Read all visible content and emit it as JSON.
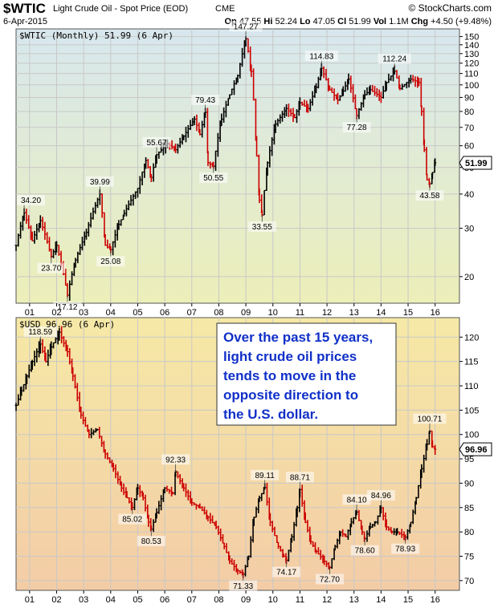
{
  "header": {
    "symbol": "$WTIC",
    "description": "Light Crude Oil - Spot Price (EOD)",
    "exchange": "CME",
    "brand": "© StockCharts.com",
    "date": "6-Apr-2015",
    "stats": [
      {
        "label": "Op",
        "value": "47.55"
      },
      {
        "label": "Hi",
        "value": "52.24"
      },
      {
        "label": "Lo",
        "value": "47.05"
      },
      {
        "label": "Cl",
        "value": "51.99"
      },
      {
        "label": "Vol",
        "value": "1.1M"
      },
      {
        "label": "Chg",
        "value": "+4.50 (+9.48%)"
      }
    ]
  },
  "colors": {
    "up": "#000000",
    "down": "#cc0000",
    "grid": "#c8c8c8",
    "note_text": "#1030c8",
    "top_bg_top": "#d7e7ee",
    "top_bg_bottom": "#ecefb8",
    "bottom_bg_top": "#f6e9a6",
    "bottom_bg_bottom": "#f3cca6"
  },
  "chart_data": [
    {
      "type": "line",
      "style": "ohlc-bars",
      "title": "$WTIC (Monthly) 51.99 (6 Apr)",
      "scale": "log",
      "ylim": [
        16,
        160
      ],
      "yticks": [
        20,
        30,
        40,
        50,
        60,
        70,
        80,
        90,
        100,
        110,
        120,
        130,
        140,
        150
      ],
      "xlim": [
        2000.0,
        2016.4
      ],
      "xtick_labels": [
        "01",
        "02",
        "03",
        "04",
        "05",
        "06",
        "07",
        "08",
        "09",
        "10",
        "11",
        "12",
        "13",
        "14",
        "15",
        "16"
      ],
      "last_value": "51.99",
      "anchors": [
        [
          2000.0,
          26
        ],
        [
          2000.3,
          34.2
        ],
        [
          2000.6,
          27
        ],
        [
          2000.9,
          32
        ],
        [
          2001.3,
          23.7
        ],
        [
          2001.5,
          26
        ],
        [
          2001.9,
          17.12
        ],
        [
          2002.2,
          23
        ],
        [
          2002.6,
          29
        ],
        [
          2003.1,
          39.99
        ],
        [
          2003.3,
          26
        ],
        [
          2003.5,
          25.08
        ],
        [
          2003.8,
          31
        ],
        [
          2004.0,
          34
        ],
        [
          2004.5,
          42
        ],
        [
          2004.8,
          53
        ],
        [
          2005.0,
          46
        ],
        [
          2005.2,
          55.67
        ],
        [
          2005.6,
          61
        ],
        [
          2005.9,
          58
        ],
        [
          2006.2,
          65
        ],
        [
          2006.6,
          75
        ],
        [
          2006.8,
          66
        ],
        [
          2007.0,
          79.43
        ],
        [
          2007.1,
          52
        ],
        [
          2007.3,
          50.55
        ],
        [
          2007.6,
          75
        ],
        [
          2007.9,
          92
        ],
        [
          2008.2,
          108
        ],
        [
          2008.5,
          147.27
        ],
        [
          2008.7,
          112
        ],
        [
          2008.9,
          55
        ],
        [
          2009.0,
          38
        ],
        [
          2009.1,
          33.55
        ],
        [
          2009.3,
          52
        ],
        [
          2009.6,
          72
        ],
        [
          2010.0,
          82
        ],
        [
          2010.3,
          76
        ],
        [
          2010.5,
          86
        ],
        [
          2010.8,
          82
        ],
        [
          2011.1,
          98
        ],
        [
          2011.3,
          114.83
        ],
        [
          2011.6,
          96
        ],
        [
          2011.9,
          88
        ],
        [
          2012.1,
          95
        ],
        [
          2012.3,
          105
        ],
        [
          2012.6,
          77.28
        ],
        [
          2012.9,
          92
        ],
        [
          2013.1,
          96
        ],
        [
          2013.5,
          90
        ],
        [
          2013.7,
          102
        ],
        [
          2014.0,
          112.24
        ],
        [
          2014.2,
          97
        ],
        [
          2014.6,
          105
        ],
        [
          2014.9,
          102
        ],
        [
          2015.0,
          80
        ],
        [
          2015.1,
          58
        ],
        [
          2015.2,
          45
        ],
        [
          2015.3,
          43.58
        ],
        [
          2015.4,
          48
        ],
        [
          2015.5,
          51.99
        ]
      ],
      "annotations": [
        {
          "x": 2000.3,
          "y": 34.2,
          "text": "34.20",
          "pos": "above"
        },
        {
          "x": 2001.3,
          "y": 23.7,
          "text": "23.70",
          "pos": "below"
        },
        {
          "x": 2001.9,
          "y": 17.12,
          "text": "17.12",
          "pos": "below"
        },
        {
          "x": 2003.1,
          "y": 39.99,
          "text": "39.99",
          "pos": "above"
        },
        {
          "x": 2003.5,
          "y": 25.08,
          "text": "25.08",
          "pos": "below"
        },
        {
          "x": 2005.2,
          "y": 55.67,
          "text": "55.67",
          "pos": "above"
        },
        {
          "x": 2007.0,
          "y": 79.43,
          "text": "79.43",
          "pos": "above"
        },
        {
          "x": 2007.3,
          "y": 50.55,
          "text": "50.55",
          "pos": "below"
        },
        {
          "x": 2008.5,
          "y": 147.27,
          "text": "147.27",
          "pos": "above"
        },
        {
          "x": 2009.1,
          "y": 33.55,
          "text": "33.55",
          "pos": "below"
        },
        {
          "x": 2011.3,
          "y": 114.83,
          "text": "114.83",
          "pos": "above"
        },
        {
          "x": 2012.6,
          "y": 77.28,
          "text": "77.28",
          "pos": "below"
        },
        {
          "x": 2014.0,
          "y": 112.24,
          "text": "112.24",
          "pos": "above"
        },
        {
          "x": 2015.3,
          "y": 43.58,
          "text": "43.58",
          "pos": "below"
        }
      ]
    },
    {
      "type": "line",
      "style": "ohlc-bars",
      "title": "$USD 96.96 (6 Apr)",
      "scale": "linear",
      "ylim": [
        68,
        124
      ],
      "yticks": [
        70,
        75,
        80,
        85,
        90,
        95,
        100,
        105,
        110,
        115,
        120
      ],
      "xlim": [
        2000.0,
        2016.4
      ],
      "xtick_labels": [
        "01",
        "02",
        "03",
        "04",
        "05",
        "06",
        "07",
        "08",
        "09",
        "10",
        "11",
        "12",
        "13",
        "14",
        "15",
        "16"
      ],
      "last_value": "96.96",
      "anchors": [
        [
          2000.0,
          106
        ],
        [
          2000.2,
          109
        ],
        [
          2000.4,
          112
        ],
        [
          2000.6,
          115
        ],
        [
          2000.9,
          118.59
        ],
        [
          2001.1,
          115
        ],
        [
          2001.3,
          118
        ],
        [
          2001.6,
          121
        ],
        [
          2001.9,
          117
        ],
        [
          2002.1,
          112
        ],
        [
          2002.4,
          104
        ],
        [
          2002.7,
          100
        ],
        [
          2003.0,
          101
        ],
        [
          2003.3,
          96
        ],
        [
          2003.6,
          93
        ],
        [
          2003.9,
          89
        ],
        [
          2004.1,
          87
        ],
        [
          2004.3,
          85.02
        ],
        [
          2004.5,
          89
        ],
        [
          2004.7,
          87
        ],
        [
          2004.9,
          82
        ],
        [
          2005.0,
          80.53
        ],
        [
          2005.2,
          84
        ],
        [
          2005.5,
          89
        ],
        [
          2005.8,
          88
        ],
        [
          2005.9,
          92.33
        ],
        [
          2006.2,
          89
        ],
        [
          2006.5,
          86
        ],
        [
          2006.8,
          85
        ],
        [
          2007.1,
          83
        ],
        [
          2007.4,
          81
        ],
        [
          2007.7,
          77
        ],
        [
          2007.9,
          74
        ],
        [
          2008.2,
          72
        ],
        [
          2008.4,
          71.33
        ],
        [
          2008.6,
          75
        ],
        [
          2008.8,
          83
        ],
        [
          2009.0,
          87
        ],
        [
          2009.2,
          89.11
        ],
        [
          2009.4,
          82
        ],
        [
          2009.7,
          77
        ],
        [
          2009.9,
          75
        ],
        [
          2010.0,
          74.17
        ],
        [
          2010.2,
          79
        ],
        [
          2010.4,
          85
        ],
        [
          2010.5,
          88.71
        ],
        [
          2010.7,
          82
        ],
        [
          2010.9,
          78
        ],
        [
          2011.1,
          76
        ],
        [
          2011.4,
          74
        ],
        [
          2011.6,
          72.7
        ],
        [
          2011.8,
          77
        ],
        [
          2012.0,
          80
        ],
        [
          2012.2,
          79
        ],
        [
          2012.4,
          82
        ],
        [
          2012.6,
          84.1
        ],
        [
          2012.8,
          80
        ],
        [
          2012.9,
          78.6
        ],
        [
          2013.1,
          81
        ],
        [
          2013.3,
          82
        ],
        [
          2013.5,
          84.96
        ],
        [
          2013.7,
          81
        ],
        [
          2013.9,
          80
        ],
        [
          2014.1,
          80
        ],
        [
          2014.4,
          78.93
        ],
        [
          2014.6,
          82
        ],
        [
          2014.8,
          87
        ],
        [
          2015.0,
          93
        ],
        [
          2015.2,
          98
        ],
        [
          2015.3,
          100.71
        ],
        [
          2015.4,
          97.5
        ],
        [
          2015.5,
          96.96
        ]
      ],
      "annotations": [
        {
          "x": 2000.9,
          "y": 118.59,
          "text": "118.59",
          "pos": "above"
        },
        {
          "x": 2004.3,
          "y": 85.02,
          "text": "85.02",
          "pos": "below"
        },
        {
          "x": 2005.0,
          "y": 80.53,
          "text": "80.53",
          "pos": "below"
        },
        {
          "x": 2005.9,
          "y": 92.33,
          "text": "92.33",
          "pos": "above"
        },
        {
          "x": 2008.4,
          "y": 71.33,
          "text": "71.33",
          "pos": "below"
        },
        {
          "x": 2009.2,
          "y": 89.11,
          "text": "89.11",
          "pos": "above"
        },
        {
          "x": 2010.0,
          "y": 74.17,
          "text": "74.17",
          "pos": "below"
        },
        {
          "x": 2010.5,
          "y": 88.71,
          "text": "88.71",
          "pos": "above"
        },
        {
          "x": 2011.6,
          "y": 72.7,
          "text": "72.70",
          "pos": "below"
        },
        {
          "x": 2012.6,
          "y": 84.1,
          "text": "84.10",
          "pos": "above"
        },
        {
          "x": 2012.9,
          "y": 78.6,
          "text": "78.60",
          "pos": "below"
        },
        {
          "x": 2013.5,
          "y": 84.96,
          "text": "84.96",
          "pos": "above"
        },
        {
          "x": 2014.4,
          "y": 78.93,
          "text": "78.93",
          "pos": "below"
        },
        {
          "x": 2015.3,
          "y": 100.71,
          "text": "100.71",
          "pos": "above"
        }
      ],
      "note_lines": [
        "Over the past 15 years,",
        "light crude oil prices",
        "tends to move in the",
        "opposite direction to",
        "the U.S. dollar."
      ]
    }
  ]
}
